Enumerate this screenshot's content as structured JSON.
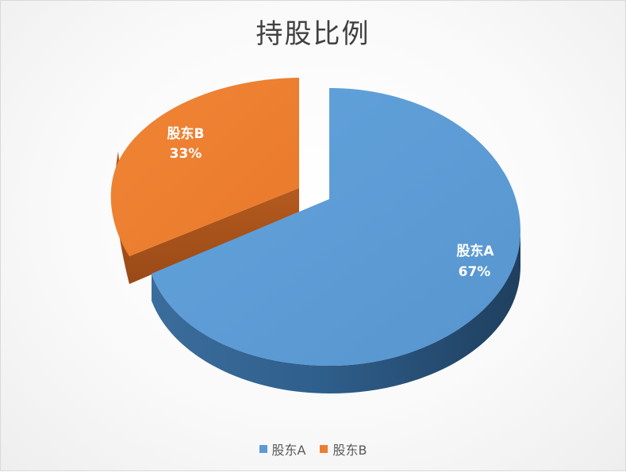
{
  "chart_data": {
    "type": "pie",
    "title": "持股比例",
    "series": [
      {
        "name": "股东A",
        "value": 67,
        "label": "67%",
        "color": "#5b9bd5"
      },
      {
        "name": "股东B",
        "value": 33,
        "label": "33%",
        "color": "#ed7d31"
      }
    ],
    "legend": {
      "placement": "bottom"
    },
    "style": "3d-exploded"
  }
}
